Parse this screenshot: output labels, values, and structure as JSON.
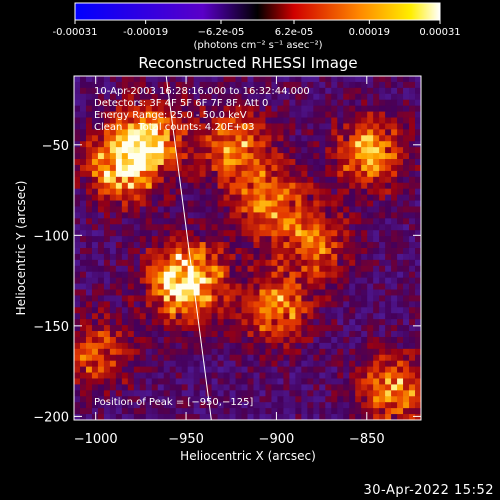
{
  "chart_data": {
    "type": "heatmap",
    "title": "Reconstructed RHESSI Image",
    "xlabel": "Heliocentric X (arcsec)",
    "ylabel": "Heliocentric Y (arcsec)",
    "xlim": [
      -1012,
      -820
    ],
    "ylim": [
      -202,
      -12
    ],
    "x_ticks": [
      -1000,
      -950,
      -900,
      -850
    ],
    "x_tick_labels": [
      "−1000",
      "−950",
      "−900",
      "−850"
    ],
    "y_ticks": [
      -200,
      -150,
      -100,
      -50
    ],
    "y_tick_labels": [
      "−200",
      "−150",
      "−100",
      "−50"
    ],
    "colorbar": {
      "min": -0.00031,
      "max": 0.00031,
      "ticks": [
        -0.00031,
        -0.00019,
        -6.2e-05,
        6.2e-05,
        0.00019,
        0.00031
      ],
      "tick_labels": [
        "-0.00031",
        "-0.00019",
        "−6.2e-05",
        "6.2e-05",
        "0.00019",
        "0.00031"
      ],
      "units_label": "(photons cm⁻² s⁻¹ asec⁻²)"
    },
    "hot_spots": [
      {
        "x": -950,
        "y": -125,
        "intensity": 1.0
      },
      {
        "x": -985,
        "y": -62,
        "intensity": 0.75
      },
      {
        "x": -970,
        "y": -45,
        "intensity": 0.6
      },
      {
        "x": -922,
        "y": -50,
        "intensity": 0.55
      },
      {
        "x": -905,
        "y": -80,
        "intensity": 0.6
      },
      {
        "x": -900,
        "y": -140,
        "intensity": 0.55
      },
      {
        "x": -848,
        "y": -55,
        "intensity": 0.65
      },
      {
        "x": -880,
        "y": -105,
        "intensity": 0.5
      },
      {
        "x": -835,
        "y": -185,
        "intensity": 0.6
      },
      {
        "x": -1000,
        "y": -165,
        "intensity": 0.45
      }
    ],
    "limb_line": [
      [
        -961,
        -12
      ],
      [
        -936,
        -202
      ]
    ]
  },
  "info": {
    "line1": "10-Apr-2003 16:28:16.000 to 16:32:44.000",
    "line2": "Detectors: 3F 4F 5F 6F 7F 8F, Att 0",
    "line3": "Energy Range: 25.0 - 50.0 keV",
    "line4": "Clean     Total counts: 4.20E+03"
  },
  "peak_text": "Position of Peak = [−950,−125]",
  "footer_date": "30-Apr-2022 15:52"
}
